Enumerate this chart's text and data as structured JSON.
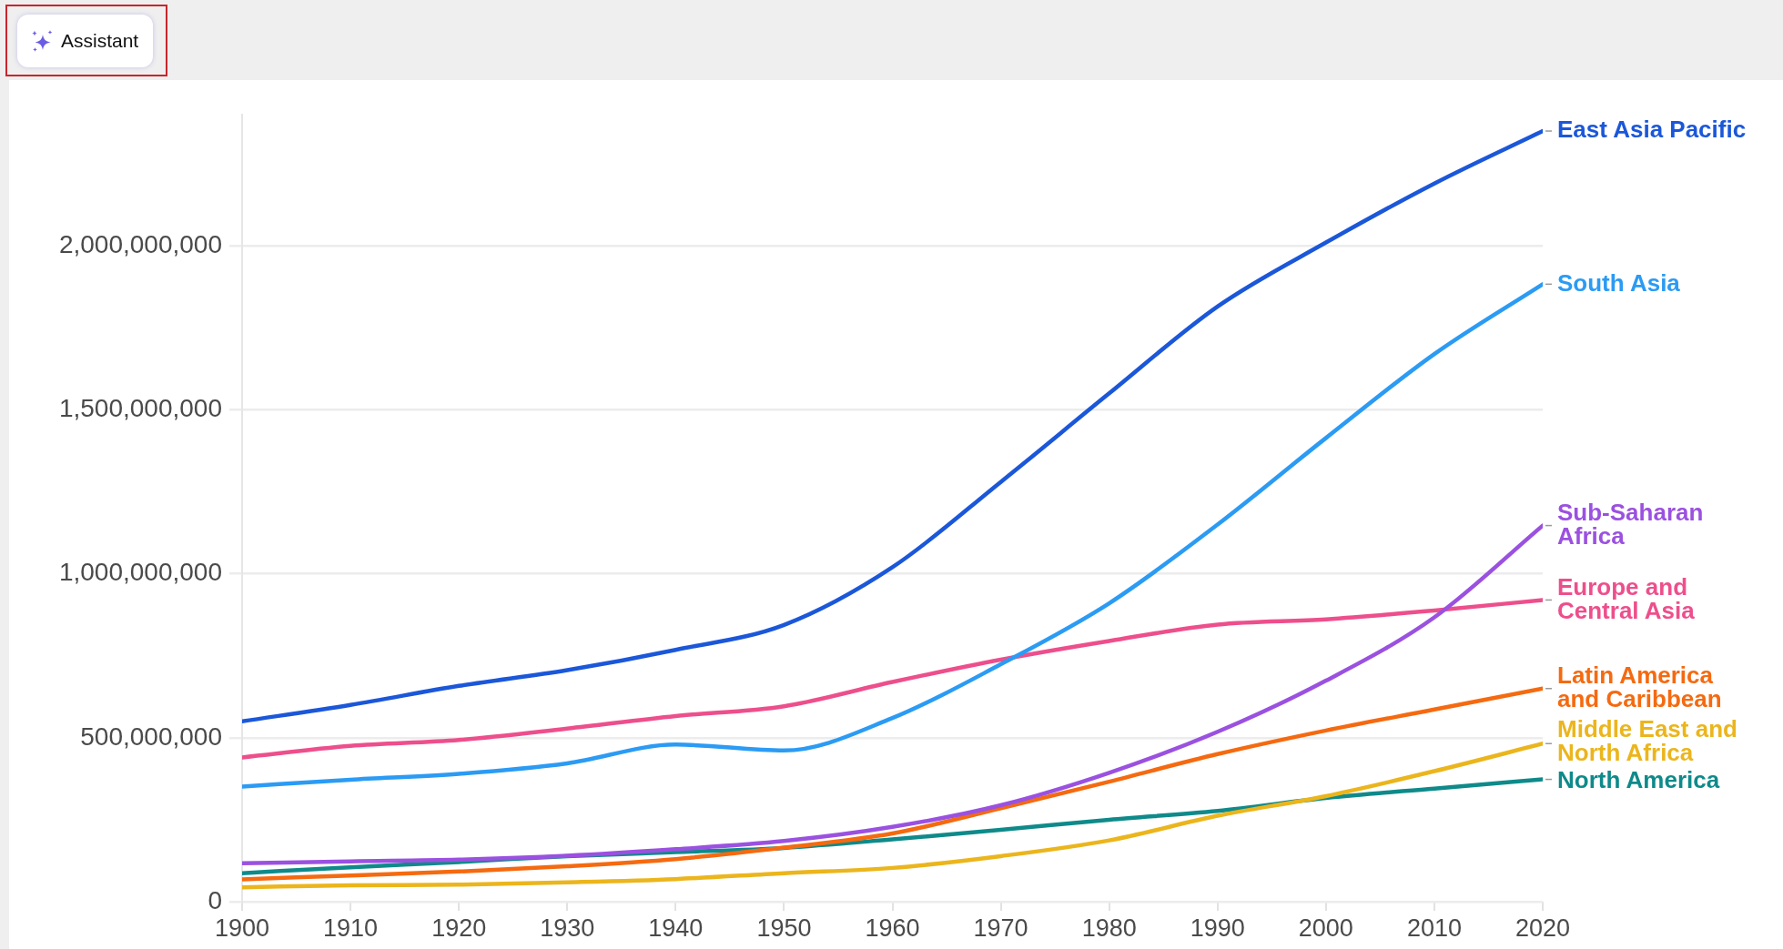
{
  "chart_data": {
    "type": "line",
    "annotations": [
      "Assistant"
    ],
    "x": [
      1900,
      1910,
      1920,
      1930,
      1940,
      1950,
      1960,
      1970,
      1980,
      1990,
      2000,
      2010,
      2020
    ],
    "series": [
      {
        "name": "East Asia Pacific",
        "color": "#1b57d9",
        "values": [
          550000000,
          600000000,
          658000000,
          706000000,
          768000000,
          844000000,
          1020000000,
          1280000000,
          1550000000,
          1815000000,
          2010000000,
          2190000000,
          2350000000
        ]
      },
      {
        "name": "South Asia",
        "color": "#2b9bf4",
        "values": [
          351000000,
          372000000,
          390000000,
          422000000,
          479000000,
          461000000,
          560000000,
          724000000,
          910000000,
          1150000000,
          1414000000,
          1670000000,
          1883000000
        ]
      },
      {
        "name": "Sub-Saharan Africa",
        "color": "#9b51e0",
        "values": [
          117000000,
          123000000,
          128000000,
          140000000,
          160000000,
          185000000,
          228000000,
          294000000,
          393000000,
          518000000,
          674000000,
          867000000,
          1147000000
        ]
      },
      {
        "name": "Europe and Central Asia",
        "color": "#ed4f8c",
        "values": [
          440000000,
          475000000,
          493000000,
          528000000,
          566000000,
          596000000,
          670000000,
          738000000,
          795000000,
          845000000,
          861000000,
          888000000,
          920000000
        ]
      },
      {
        "name": "Latin America and Caribbean",
        "color": "#f56a10",
        "values": [
          68000000,
          80000000,
          92000000,
          108000000,
          130000000,
          165000000,
          208000000,
          285000000,
          366000000,
          450000000,
          522000000,
          586000000,
          650000000
        ]
      },
      {
        "name": "Middle East and North Africa",
        "color": "#ebb51c",
        "values": [
          44000000,
          50000000,
          52000000,
          59000000,
          69000000,
          87000000,
          103000000,
          139000000,
          187000000,
          262000000,
          322000000,
          398000000,
          482000000
        ]
      },
      {
        "name": "North America",
        "color": "#0f8a8a",
        "values": [
          87000000,
          105000000,
          121000000,
          139000000,
          151000000,
          164000000,
          190000000,
          219000000,
          250000000,
          277000000,
          316000000,
          345000000,
          373000000
        ]
      }
    ],
    "xlim": [
      1900,
      2020
    ],
    "xticks": [
      1900,
      1910,
      1920,
      1930,
      1940,
      1950,
      1960,
      1970,
      1980,
      1990,
      2000,
      2010,
      2020
    ],
    "ylim": [
      0,
      2400000000
    ],
    "yticks": [
      0,
      {
        "value": 500000000,
        "label": "500,000,000"
      },
      {
        "value": 1000000000,
        "label": "1,000,000,000"
      },
      {
        "value": 1500000000,
        "label": "1,500,000,000"
      },
      {
        "value": 2000000000,
        "label": "2,000,000,000"
      }
    ],
    "grid": "y",
    "legend": false,
    "marker": "none",
    "line_style": "solid"
  }
}
